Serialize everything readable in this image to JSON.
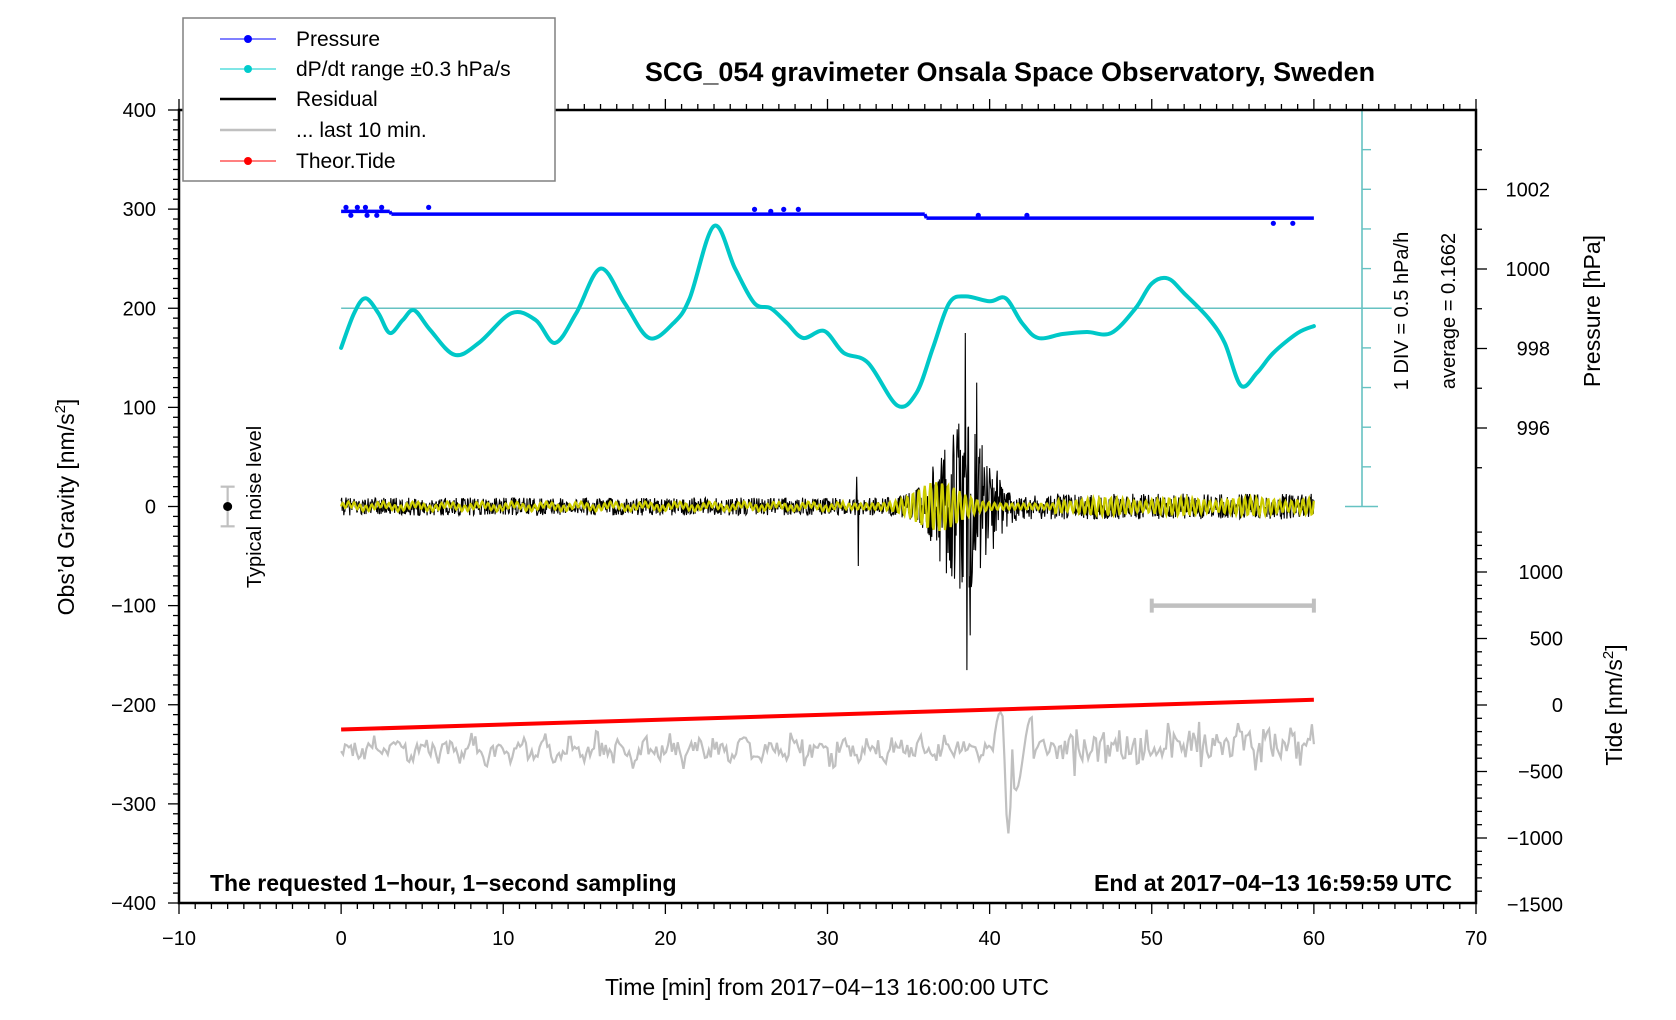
{
  "chart_data": {
    "type": "line",
    "title": "SCG_054 gravimeter Onsala Space Observatory, Sweden",
    "xlabel": "Time [min] from 2017−04−13 16:00:00 UTC",
    "ylabel_left": "Obs’d Gravity [nm/s",
    "ylabel_left_sup": "2",
    "ylabel_left_close": "]",
    "ylabel_pressure": "Pressure [hPa]",
    "ylabel_tide": "Tide [nm/s",
    "ylabel_tide_sup": "2",
    "ylabel_tide_close": "]",
    "xlim": [
      -10,
      70
    ],
    "ylim_left": [
      -400,
      400
    ],
    "ylim_pressure_ticks": [
      996,
      1002
    ],
    "ylim_tide_ticks": [
      -1500,
      1000
    ],
    "x_ticks": [
      "−10",
      "0",
      "10",
      "20",
      "30",
      "40",
      "50",
      "60",
      "70"
    ],
    "x_tick_values": [
      -10,
      0,
      10,
      20,
      30,
      40,
      50,
      60,
      70
    ],
    "y_left_ticks": [
      "400",
      "300",
      "200",
      "100",
      "0",
      "−100",
      "−200",
      "−300",
      "−400"
    ],
    "y_left_tick_values": [
      400,
      300,
      200,
      100,
      0,
      -100,
      -200,
      -300,
      -400
    ],
    "y_pressure_ticks": [
      "1002",
      "1000",
      "998",
      "996"
    ],
    "y_pressure_tick_values": [
      1002,
      1000,
      998,
      996
    ],
    "y_tide_ticks": [
      "1000",
      "500",
      "0",
      "−500",
      "−1000",
      "−1500"
    ],
    "y_tide_tick_values": [
      1000,
      500,
      0,
      -500,
      -1000,
      -1500
    ],
    "legend": {
      "placement": "top-left",
      "entries": [
        {
          "label": "Pressure",
          "color": "#0000ff",
          "marker": "dot"
        },
        {
          "label": "dP/dt range ±0.3 hPa/s",
          "color": "#00cccc",
          "marker": "dot"
        },
        {
          "label": "Residual",
          "color": "#000000",
          "marker": "line"
        },
        {
          "label": "... last 10 min.",
          "color": "#c0c0c0",
          "marker": "line"
        },
        {
          "label": "Theor.Tide",
          "color": "#ff0000",
          "marker": "dot"
        }
      ]
    },
    "annotations": {
      "bottom_left": "The requested 1−hour, 1−second sampling",
      "bottom_right": "End at 2017−04−13 16:59:59 UTC",
      "dpdt_scale": "1 DIV = 0.5 hPa/h",
      "dpdt_average": "average = 0.1662",
      "noise_label": "Typical noise level"
    },
    "noise_level": {
      "x": -7,
      "center": 0,
      "plus_minus": 20
    },
    "last10_bar": {
      "x_start": 50,
      "x_end": 60,
      "y": -100
    },
    "dpdt_reference_level": 200,
    "series": [
      {
        "name": "Pressure",
        "axis": "pressure",
        "color": "#0000ff",
        "x": [
          0,
          3,
          3.1,
          36,
          36.1,
          60
        ],
        "values": [
          1001.45,
          1001.45,
          1001.38,
          1001.38,
          1001.28,
          1001.28
        ]
      },
      {
        "name": "dP/dt",
        "axis": "left",
        "color": "#00c8c8",
        "x": [
          0,
          0.8,
          1.5,
          2.3,
          3,
          3.8,
          4.5,
          5.5,
          7,
          8.5,
          10.5,
          12,
          13.2,
          14.5,
          16,
          17.5,
          19,
          20.5,
          21.5,
          23,
          24.3,
          25.5,
          26.5,
          27.5,
          28.5,
          29.8,
          31,
          32.5,
          34.3,
          35.5,
          36.5,
          37.5,
          38.5,
          40,
          41,
          42,
          43,
          44.5,
          46,
          47.5,
          49,
          50,
          51,
          52,
          53.5,
          54.5,
          55.5,
          56.5,
          57.5,
          59,
          60
        ],
        "values": [
          160,
          195,
          210,
          195,
          175,
          188,
          198,
          178,
          153,
          165,
          195,
          188,
          165,
          195,
          240,
          205,
          170,
          185,
          210,
          283,
          240,
          205,
          200,
          185,
          170,
          177,
          155,
          145,
          102,
          115,
          160,
          205,
          212,
          207,
          210,
          185,
          170,
          174,
          176,
          175,
          200,
          225,
          230,
          215,
          190,
          165,
          122,
          135,
          155,
          175,
          182
        ]
      },
      {
        "name": "Residual",
        "axis": "left",
        "color": "#000000",
        "x": [
          0,
          60
        ],
        "event_window_min": [
          31.5,
          42
        ],
        "max": 175,
        "min": -165
      },
      {
        "name": "Residual filtered",
        "axis": "left",
        "color": "#cccc00",
        "x": [
          0,
          60
        ]
      },
      {
        "name": "... last 10 min.",
        "axis": "left",
        "color": "#c0c0c0",
        "x": [
          0,
          60
        ],
        "baseline": -245
      },
      {
        "name": "Theor.Tide",
        "axis": "left",
        "color": "#ff0000",
        "x": [
          0,
          60
        ],
        "values": [
          -225,
          -195
        ]
      }
    ]
  }
}
